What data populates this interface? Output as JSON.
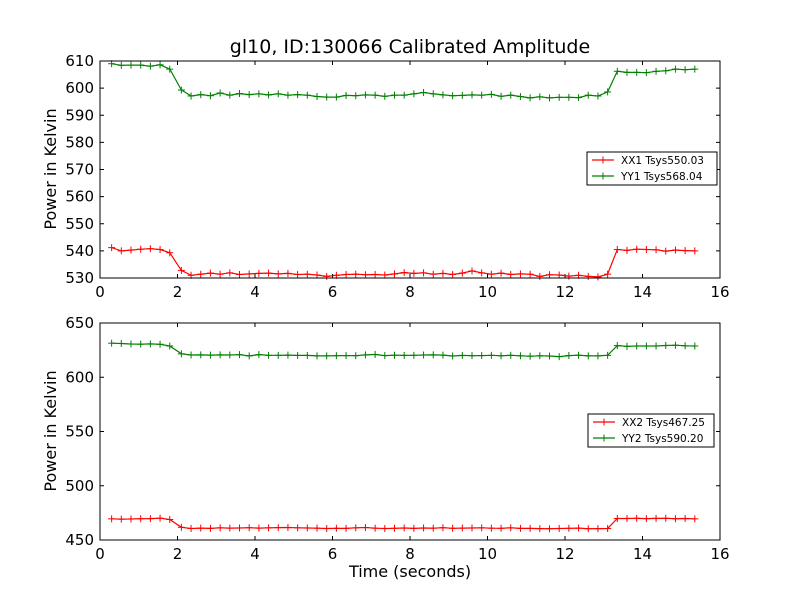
{
  "chart_data": [
    {
      "type": "line",
      "title": "gl10, ID:130066 Calibrated Amplitude",
      "xlabel": "",
      "ylabel": "Power in Kelvin",
      "xlim": [
        0,
        16
      ],
      "ylim": [
        530,
        610
      ],
      "x_ticks": [
        0,
        2,
        4,
        6,
        8,
        10,
        12,
        14,
        16
      ],
      "y_ticks": [
        530,
        540,
        550,
        560,
        570,
        580,
        590,
        600,
        610
      ],
      "legend_position": "right",
      "x": [
        0.3,
        0.55,
        0.8,
        1.05,
        1.3,
        1.55,
        1.8,
        2.1,
        2.35,
        2.6,
        2.85,
        3.1,
        3.35,
        3.6,
        3.85,
        4.1,
        4.35,
        4.6,
        4.85,
        5.1,
        5.35,
        5.6,
        5.85,
        6.1,
        6.35,
        6.6,
        6.85,
        7.1,
        7.35,
        7.6,
        7.85,
        8.1,
        8.35,
        8.6,
        8.85,
        9.1,
        9.35,
        9.6,
        9.85,
        10.1,
        10.35,
        10.6,
        10.85,
        11.1,
        11.35,
        11.6,
        11.85,
        12.1,
        12.35,
        12.6,
        12.85,
        13.1,
        13.35,
        13.6,
        13.85,
        14.1,
        14.35,
        14.6,
        14.85,
        15.1,
        15.35
      ],
      "series": [
        {
          "name": "XX1 Tsys550.03",
          "color": "#ff0000",
          "values": [
            541.2,
            540.0,
            540.3,
            540.6,
            540.8,
            540.5,
            539.3,
            532.8,
            531.0,
            531.4,
            531.8,
            531.4,
            531.9,
            531.3,
            531.5,
            531.7,
            531.8,
            531.5,
            531.7,
            531.3,
            531.4,
            531.1,
            530.6,
            531.0,
            531.3,
            531.4,
            531.2,
            531.3,
            531.1,
            531.5,
            532.0,
            531.7,
            531.9,
            531.4,
            531.7,
            531.3,
            531.8,
            532.6,
            531.9,
            531.4,
            531.8,
            531.3,
            531.5,
            531.4,
            530.6,
            531.2,
            531.1,
            530.7,
            531.0,
            530.6,
            530.4,
            531.4,
            540.5,
            540.2,
            540.6,
            540.5,
            540.4,
            539.9,
            540.3,
            540.1,
            540.0
          ]
        },
        {
          "name": "YY1 Tsys568.04",
          "color": "#008000",
          "values": [
            609.0,
            608.4,
            608.5,
            608.5,
            608.1,
            608.6,
            607.0,
            599.3,
            597.1,
            597.6,
            597.2,
            598.2,
            597.4,
            598.0,
            597.6,
            597.9,
            597.5,
            597.9,
            597.4,
            597.6,
            597.4,
            596.9,
            596.7,
            596.7,
            597.3,
            597.2,
            597.5,
            597.4,
            597.0,
            597.4,
            597.4,
            597.9,
            598.4,
            597.9,
            597.5,
            597.2,
            597.3,
            597.5,
            597.4,
            597.7,
            597.0,
            597.4,
            596.9,
            596.4,
            596.8,
            596.4,
            596.6,
            596.6,
            596.5,
            597.4,
            597.1,
            598.6,
            606.2,
            605.8,
            605.8,
            605.7,
            606.2,
            606.4,
            607.0,
            606.8,
            607.0
          ]
        }
      ]
    },
    {
      "type": "line",
      "title": "",
      "xlabel": "Time (seconds)",
      "ylabel": "Power in Kelvin",
      "xlim": [
        0,
        16
      ],
      "ylim": [
        450,
        650
      ],
      "x_ticks": [
        0,
        2,
        4,
        6,
        8,
        10,
        12,
        14,
        16
      ],
      "y_ticks": [
        450,
        500,
        550,
        600,
        650
      ],
      "legend_position": "right",
      "x": [
        0.3,
        0.55,
        0.8,
        1.05,
        1.3,
        1.55,
        1.8,
        2.1,
        2.35,
        2.6,
        2.85,
        3.1,
        3.35,
        3.6,
        3.85,
        4.1,
        4.35,
        4.6,
        4.85,
        5.1,
        5.35,
        5.6,
        5.85,
        6.1,
        6.35,
        6.6,
        6.85,
        7.1,
        7.35,
        7.6,
        7.85,
        8.1,
        8.35,
        8.6,
        8.85,
        9.1,
        9.35,
        9.6,
        9.85,
        10.1,
        10.35,
        10.6,
        10.85,
        11.1,
        11.35,
        11.6,
        11.85,
        12.1,
        12.35,
        12.6,
        12.85,
        13.1,
        13.35,
        13.6,
        13.85,
        14.1,
        14.35,
        14.6,
        14.85,
        15.1,
        15.35
      ],
      "series": [
        {
          "name": "XX2 Tsys467.25",
          "color": "#ff0000",
          "values": [
            469.5,
            469.2,
            469.4,
            469.6,
            469.7,
            470.1,
            468.9,
            461.7,
            460.6,
            461.0,
            460.7,
            461.2,
            461.0,
            461.1,
            461.3,
            461.0,
            461.2,
            461.4,
            461.5,
            461.2,
            461.1,
            460.9,
            460.6,
            460.8,
            460.7,
            461.2,
            461.5,
            460.9,
            460.6,
            460.8,
            461.1,
            460.7,
            461.1,
            460.9,
            461.3,
            460.8,
            461.0,
            461.1,
            461.2,
            460.9,
            460.8,
            461.2,
            460.7,
            460.7,
            460.5,
            460.4,
            460.6,
            460.8,
            461.0,
            460.4,
            460.5,
            460.6,
            469.8,
            469.8,
            470.0,
            469.7,
            469.9,
            470.0,
            469.6,
            469.8,
            469.5
          ]
        },
        {
          "name": "YY2 Tsys590.20",
          "color": "#008000",
          "values": [
            631.4,
            631.1,
            630.6,
            630.5,
            630.7,
            630.4,
            628.8,
            621.6,
            620.5,
            620.6,
            620.4,
            620.6,
            620.5,
            620.8,
            619.7,
            620.9,
            620.2,
            620.2,
            620.4,
            620.1,
            620.1,
            619.7,
            619.7,
            619.9,
            620.0,
            619.9,
            620.6,
            621.0,
            620.0,
            620.3,
            620.1,
            620.2,
            620.5,
            620.6,
            620.4,
            619.6,
            620.1,
            619.9,
            620.0,
            620.2,
            619.8,
            620.2,
            619.8,
            619.4,
            619.8,
            619.6,
            619.0,
            620.0,
            620.3,
            619.7,
            619.7,
            620.2,
            629.2,
            628.5,
            628.8,
            628.8,
            628.8,
            629.3,
            629.5,
            629.0,
            628.8
          ]
        }
      ]
    }
  ]
}
